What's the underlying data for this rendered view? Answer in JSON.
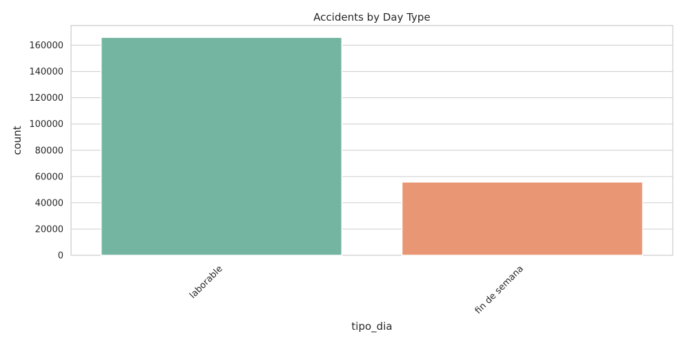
{
  "chart_data": {
    "type": "bar",
    "title": "Accidents by Day Type",
    "xlabel": "tipo_dia",
    "ylabel": "count",
    "categories": [
      "laborable",
      "fin de semana"
    ],
    "values": [
      166000,
      55800
    ],
    "ylim": [
      0,
      175000
    ],
    "yticks": [
      0,
      20000,
      40000,
      60000,
      80000,
      100000,
      120000,
      140000,
      160000
    ],
    "ytick_labels": [
      "0",
      "20000",
      "40000",
      "60000",
      "80000",
      "100000",
      "120000",
      "140000",
      "160000"
    ],
    "bar_colors": [
      "#73b5a1",
      "#e89674"
    ],
    "grid": true,
    "legend": "none"
  }
}
